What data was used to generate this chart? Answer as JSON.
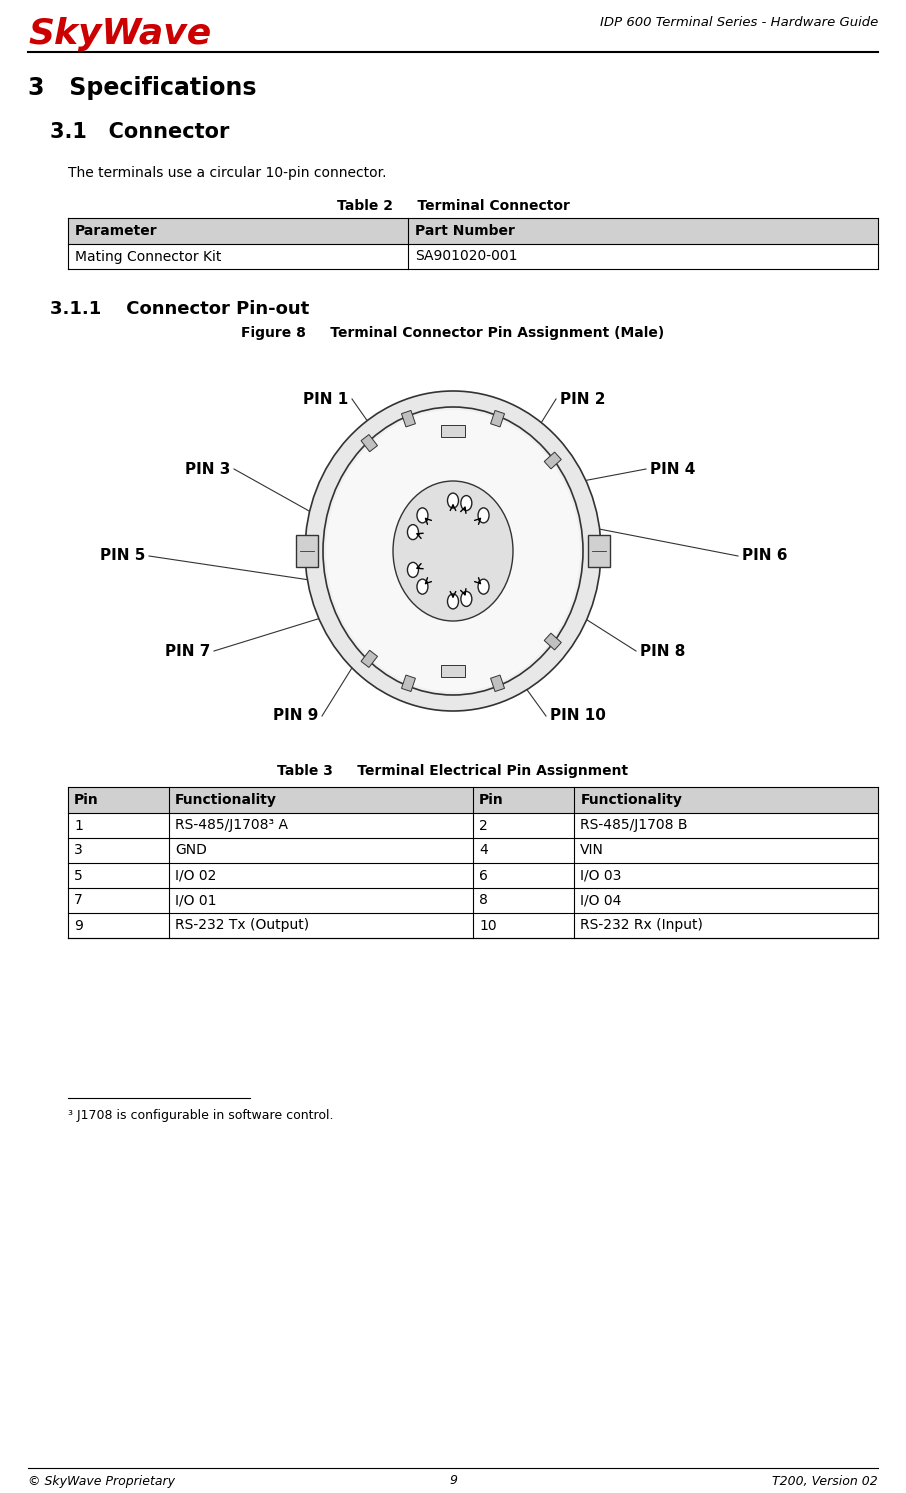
{
  "bg_color": "#ffffff",
  "header_title": "IDP 600 Terminal Series - Hardware Guide",
  "skywave_text": "SkyWave",
  "skywave_color": "#cc0000",
  "section_title": "3   Specifications",
  "subsection_title": "3.1   Connector",
  "body_text": "The terminals use a circular 10-pin connector.",
  "table2_title": "Table 2     Terminal Connector",
  "table2_headers": [
    "Parameter",
    "Part Number"
  ],
  "table2_rows": [
    [
      "Mating Connector Kit",
      "SA901020-001"
    ]
  ],
  "subsubsection_title": "3.1.1    Connector Pin-out",
  "figure_title": "Figure 8     Terminal Connector Pin Assignment (Male)",
  "table3_title": "Table 3     Terminal Electrical Pin Assignment",
  "table3_headers": [
    "Pin",
    "Functionality",
    "Pin",
    "Functionality"
  ],
  "table3_rows": [
    [
      "1",
      "RS-485/J1708³ A",
      "2",
      "RS-485/J1708 B"
    ],
    [
      "3",
      "GND",
      "4",
      "VIN"
    ],
    [
      "5",
      "I/O 02",
      "6",
      "I/O 03"
    ],
    [
      "7",
      "I/O 01",
      "8",
      "I/O 04"
    ],
    [
      "9",
      "RS-232 Tx (Output)",
      "10",
      "RS-232 Rx (Input)"
    ]
  ],
  "footnote_line": "³ J1708 is configurable in software control.",
  "footer_left": "© SkyWave Proprietary",
  "footer_center": "9",
  "footer_right": "T200, Version 02",
  "table_header_bg": "#d0d0d0",
  "table_border_color": "#000000",
  "connector_line_color": "#333333",
  "connector_fill": "#ffffff",
  "t2_col_split": 0.42
}
